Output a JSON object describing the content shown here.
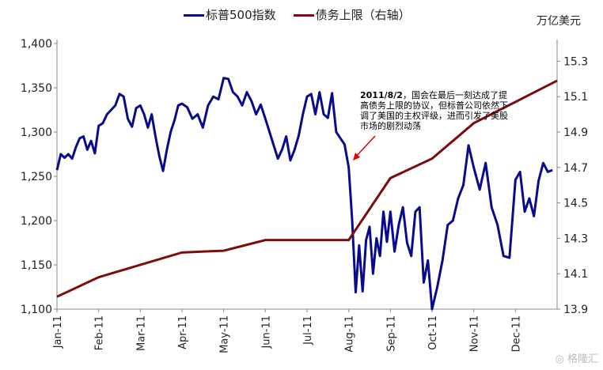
{
  "chart_data": {
    "type": "line",
    "title": "",
    "unit_right": "万亿美元",
    "x_tick_labels": [
      "Jan-11",
      "Feb-11",
      "Mar-11",
      "Apr-11",
      "May-11",
      "Jun-11",
      "Jul-11",
      "Aug-11",
      "Sep-11",
      "Oct-11",
      "Nov-11",
      "Dec-11"
    ],
    "left_axis": {
      "ylim": [
        1100,
        1400
      ],
      "ticks": [
        "1,100",
        "1,150",
        "1,200",
        "1,250",
        "1,300",
        "1,350",
        "1,400"
      ]
    },
    "right_axis": {
      "ylim": [
        13.9,
        15.4
      ],
      "ticks": [
        "13.9",
        "14.1",
        "14.3",
        "14.5",
        "14.7",
        "14.9",
        "15.1",
        "15.3"
      ]
    },
    "series": [
      {
        "name": "标普500指数",
        "axis": "left",
        "color": "#0a0a8c",
        "monthly_values": [
          [
            1257,
            1275,
            1271,
            1275,
            1270,
            1283,
            1293,
            1295,
            1280,
            1290,
            1276
          ],
          [
            1307,
            1310,
            1320,
            1325,
            1330,
            1343,
            1340,
            1315,
            1306,
            1327
          ],
          [
            1330,
            1320,
            1305,
            1320,
            1295,
            1273,
            1256,
            1280,
            1300,
            1313,
            1330
          ],
          [
            1332,
            1328,
            1315,
            1320,
            1305,
            1330,
            1340,
            1337
          ],
          [
            1361,
            1360,
            1345,
            1340,
            1330,
            1345,
            1335,
            1320,
            1331
          ],
          [
            1315,
            1300,
            1285,
            1270,
            1280,
            1295,
            1268,
            1280,
            1296,
            1320
          ],
          [
            1340,
            1343,
            1320,
            1345,
            1320,
            1316,
            1344,
            1300,
            1293,
            1286
          ],
          [
            1260,
            1200,
            1119,
            1172,
            1120,
            1178,
            1193,
            1140,
            1180,
            1160,
            1210,
            1176
          ],
          [
            1210,
            1165,
            1195,
            1215,
            1175,
            1160,
            1210,
            1215,
            1130,
            1155
          ],
          [
            1100,
            1125,
            1155,
            1195,
            1200,
            1225,
            1240,
            1285
          ],
          [
            1260,
            1235,
            1265,
            1215,
            1195,
            1160,
            1158
          ],
          [
            1246,
            1255,
            1210,
            1225,
            1205,
            1245,
            1265,
            1255,
            1257
          ]
        ]
      },
      {
        "name": "债务上限（右轴）",
        "axis": "right",
        "color": "#7b0c0c",
        "points": [
          [
            0,
            13.97
          ],
          [
            1,
            14.08
          ],
          [
            3,
            14.22
          ],
          [
            4,
            14.23
          ],
          [
            5,
            14.29
          ],
          [
            7,
            14.29
          ],
          [
            8,
            14.64
          ],
          [
            9,
            14.75
          ],
          [
            10,
            14.95
          ],
          [
            12,
            15.19
          ]
        ]
      }
    ],
    "annotation": {
      "date": "2011/8/2",
      "text": "，国会在最后一刻达成了提高债务上限的协议，但标普公司依然下调了美国的主权评级，进而引发了美股市场的剧烈动荡"
    }
  },
  "watermark": "格隆汇"
}
